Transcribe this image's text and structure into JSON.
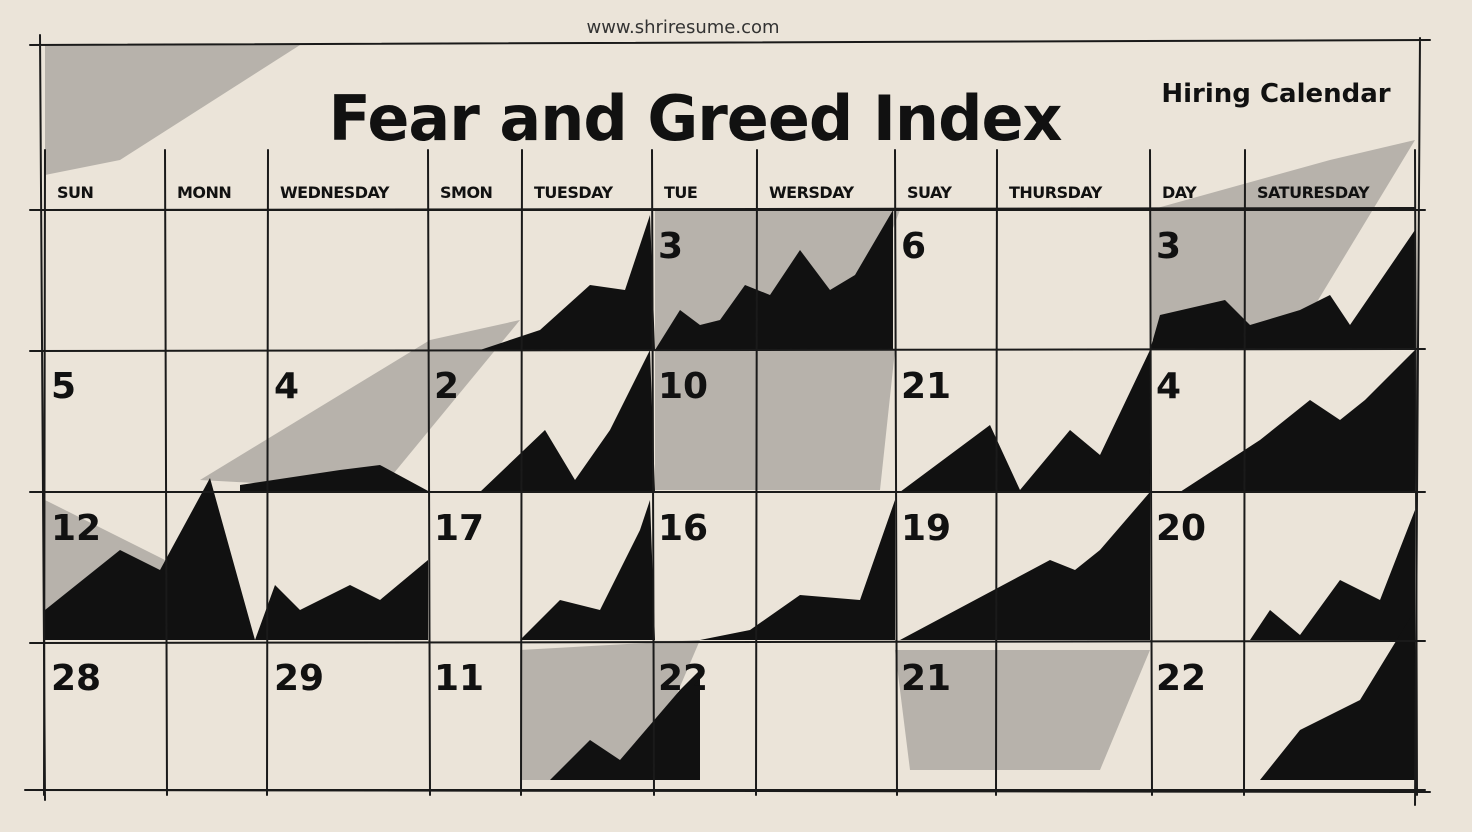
{
  "header": {
    "site": "www.shriresume.com",
    "title": "Fear and Greed Index",
    "subtitle": "Hiring Calendar"
  },
  "calendar": {
    "days": [
      "SUN",
      "MONN",
      "WEDNESDAY",
      "SMON",
      "TUESDAY",
      "TUE",
      "WERSDAY",
      "SUAY",
      "THURSDAY",
      "DAY",
      "SATURESDAY"
    ],
    "weeks": [
      [
        null,
        null,
        null,
        null,
        null,
        3,
        null,
        6,
        null,
        3,
        null
      ],
      [
        5,
        null,
        4,
        2,
        null,
        10,
        null,
        21,
        null,
        4,
        null
      ],
      [
        12,
        null,
        null,
        17,
        null,
        16,
        null,
        19,
        null,
        20,
        null
      ],
      [
        28,
        null,
        29,
        11,
        null,
        22,
        null,
        21,
        null,
        22,
        null
      ]
    ]
  }
}
